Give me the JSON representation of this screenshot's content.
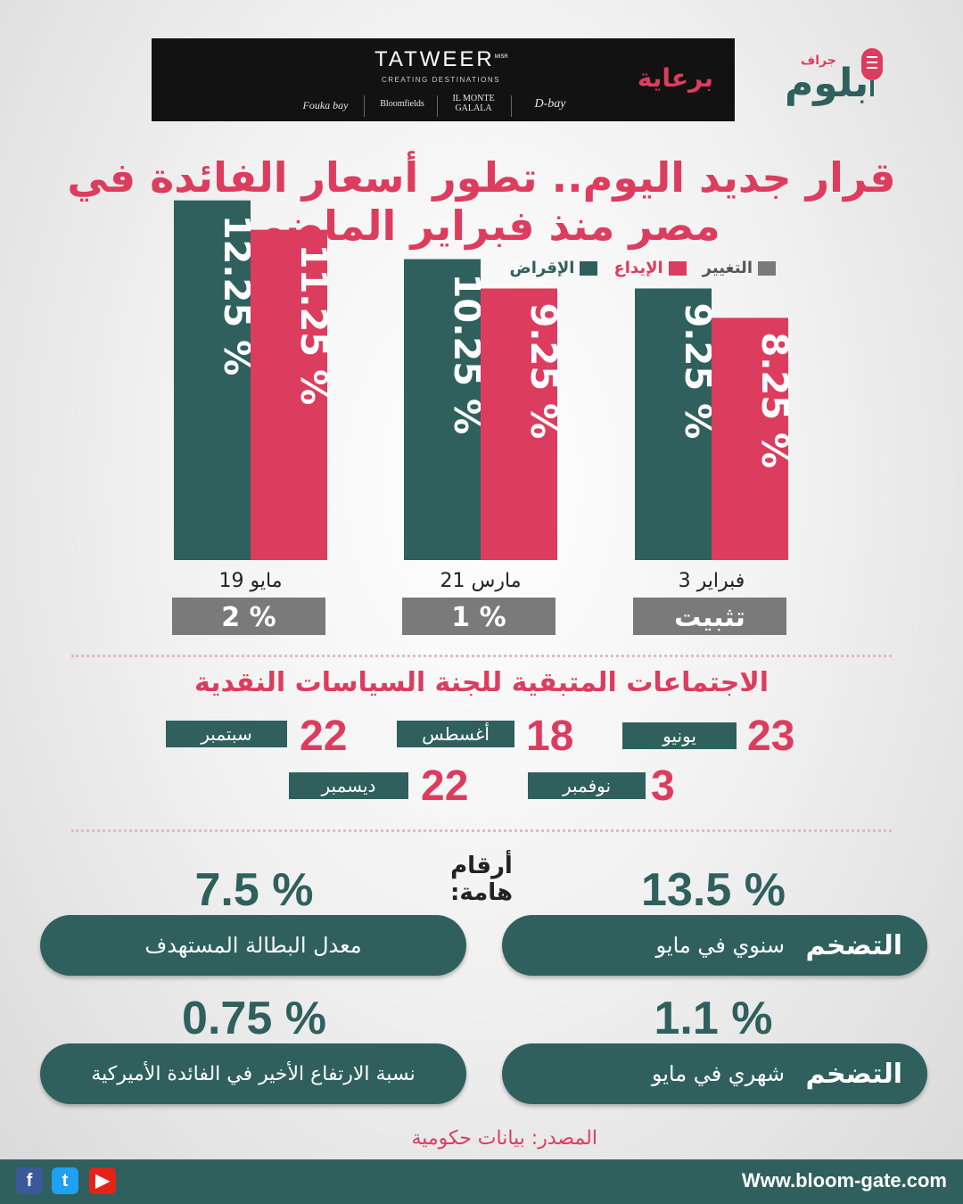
{
  "sponsor": {
    "label": "برعاية",
    "brand": "TATWEER",
    "brand_super": "MISR",
    "tagline": "CREATING DESTINATIONS",
    "projects": [
      "Fouka bay",
      "Bloomfields",
      "IL MONTE GALALA",
      "D-bay"
    ]
  },
  "logo": {
    "sub": "جراف",
    "main": "بلوم"
  },
  "title": "قرار جديد اليوم.. تطور أسعار الفائدة في مصر منذ فبراير الماضي",
  "legend": [
    {
      "label": "التغيير",
      "color": "#7a7a7a"
    },
    {
      "label": "الإيداع",
      "color": "#dc3d5f"
    },
    {
      "label": "الإقراض",
      "color": "#2f605d"
    }
  ],
  "chart_data": {
    "type": "bar",
    "categories": [
      "19 مايو",
      "21 مارس",
      "3 فبراير"
    ],
    "series": [
      {
        "name": "الإقراض",
        "color": "#2f605d",
        "values": [
          12.25,
          10.25,
          9.25
        ],
        "labels": [
          "12.25 %",
          "10.25 %",
          "9.25 %"
        ]
      },
      {
        "name": "الإيداع",
        "color": "#dc3d5f",
        "values": [
          11.25,
          9.25,
          8.25
        ],
        "labels": [
          "11.25 %",
          "9.25 %",
          "8.25 %"
        ]
      }
    ],
    "change": [
      "2 %",
      "1 %",
      "تثبيت"
    ],
    "ylim": [
      0,
      13
    ]
  },
  "meetings": {
    "title": "الاجتماعات المتبقية للجنة السياسات النقدية",
    "row1": [
      {
        "day": "23",
        "month": "يونيو"
      },
      {
        "day": "18",
        "month": "أغسطس"
      },
      {
        "day": "22",
        "month": "سبتمبر"
      }
    ],
    "row2": [
      {
        "day": "3",
        "month": "نوفمبر"
      },
      {
        "day": "22",
        "month": "ديسمبر"
      }
    ]
  },
  "key_figures": {
    "title": "أرقام هامة:",
    "items": [
      {
        "value": "13.5 %",
        "head": "التضخم",
        "desc": "سنوي في مايو"
      },
      {
        "value": "7.5 %",
        "head": "",
        "desc": "معدل البطالة المستهدف"
      },
      {
        "value": "1.1 %",
        "head": "التضخم",
        "desc": "شهري في مايو"
      },
      {
        "value": "0.75 %",
        "head": "",
        "desc": "نسبة الارتفاع الأخير في الفائدة الأميركية"
      }
    ]
  },
  "source": "المصدر: بيانات حكومية",
  "footer": {
    "website": "Www.bloom-gate.com",
    "social": [
      "facebook",
      "twitter",
      "youtube"
    ]
  }
}
